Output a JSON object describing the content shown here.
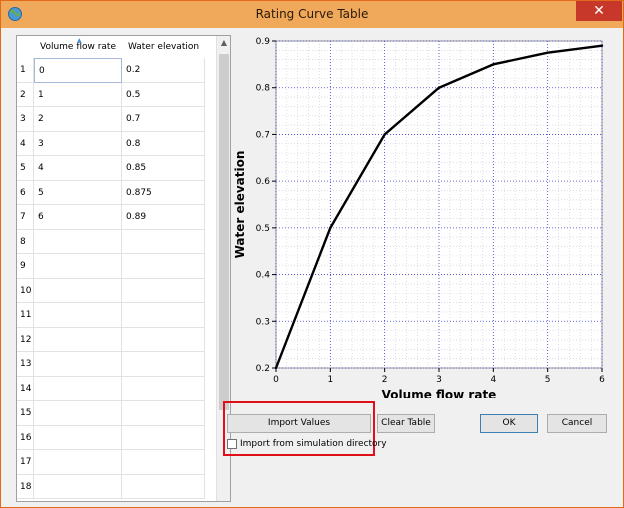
{
  "window": {
    "title": "Rating Curve Table",
    "close_label": "✕"
  },
  "table": {
    "columns": [
      "Volume flow rate",
      "Water elevation"
    ],
    "rows": [
      {
        "n": "1",
        "flow": "0",
        "elev": "0.2"
      },
      {
        "n": "2",
        "flow": "1",
        "elev": "0.5"
      },
      {
        "n": "3",
        "flow": "2",
        "elev": "0.7"
      },
      {
        "n": "4",
        "flow": "3",
        "elev": "0.8"
      },
      {
        "n": "5",
        "flow": "4",
        "elev": "0.85"
      },
      {
        "n": "6",
        "flow": "5",
        "elev": "0.875"
      },
      {
        "n": "7",
        "flow": "6",
        "elev": "0.89"
      },
      {
        "n": "8",
        "flow": "",
        "elev": ""
      },
      {
        "n": "9",
        "flow": "",
        "elev": ""
      },
      {
        "n": "10",
        "flow": "",
        "elev": ""
      },
      {
        "n": "11",
        "flow": "",
        "elev": ""
      },
      {
        "n": "12",
        "flow": "",
        "elev": ""
      },
      {
        "n": "13",
        "flow": "",
        "elev": ""
      },
      {
        "n": "14",
        "flow": "",
        "elev": ""
      },
      {
        "n": "15",
        "flow": "",
        "elev": ""
      },
      {
        "n": "16",
        "flow": "",
        "elev": ""
      },
      {
        "n": "17",
        "flow": "",
        "elev": ""
      },
      {
        "n": "18",
        "flow": "",
        "elev": ""
      }
    ]
  },
  "chart_data": {
    "type": "line",
    "x": [
      0,
      1,
      2,
      3,
      4,
      5,
      6
    ],
    "series": [
      {
        "values": [
          0.2,
          0.5,
          0.7,
          0.8,
          0.85,
          0.875,
          0.89
        ]
      }
    ],
    "xlabel": "Volume flow rate",
    "ylabel": "Water elevation",
    "xlim": [
      0,
      6
    ],
    "ylim": [
      0.2,
      0.9
    ],
    "xticks": [
      "0",
      "1",
      "2",
      "3",
      "4",
      "5",
      "6"
    ],
    "yticks": [
      "0.2",
      "0.3",
      "0.4",
      "0.5",
      "0.6",
      "0.7",
      "0.8",
      "0.9"
    ],
    "grid": true,
    "grid_color": "#3a3ad0",
    "line_color": "#000000"
  },
  "buttons": {
    "import_values": "Import Values",
    "clear_table": "Clear Table",
    "ok": "OK",
    "cancel": "Cancel"
  },
  "import_option": {
    "label": "Import from simulation directory",
    "checked": false
  },
  "colors": {
    "highlight": "#e0101a",
    "titlebar": "#f0a85a",
    "close": "#c7382a"
  }
}
